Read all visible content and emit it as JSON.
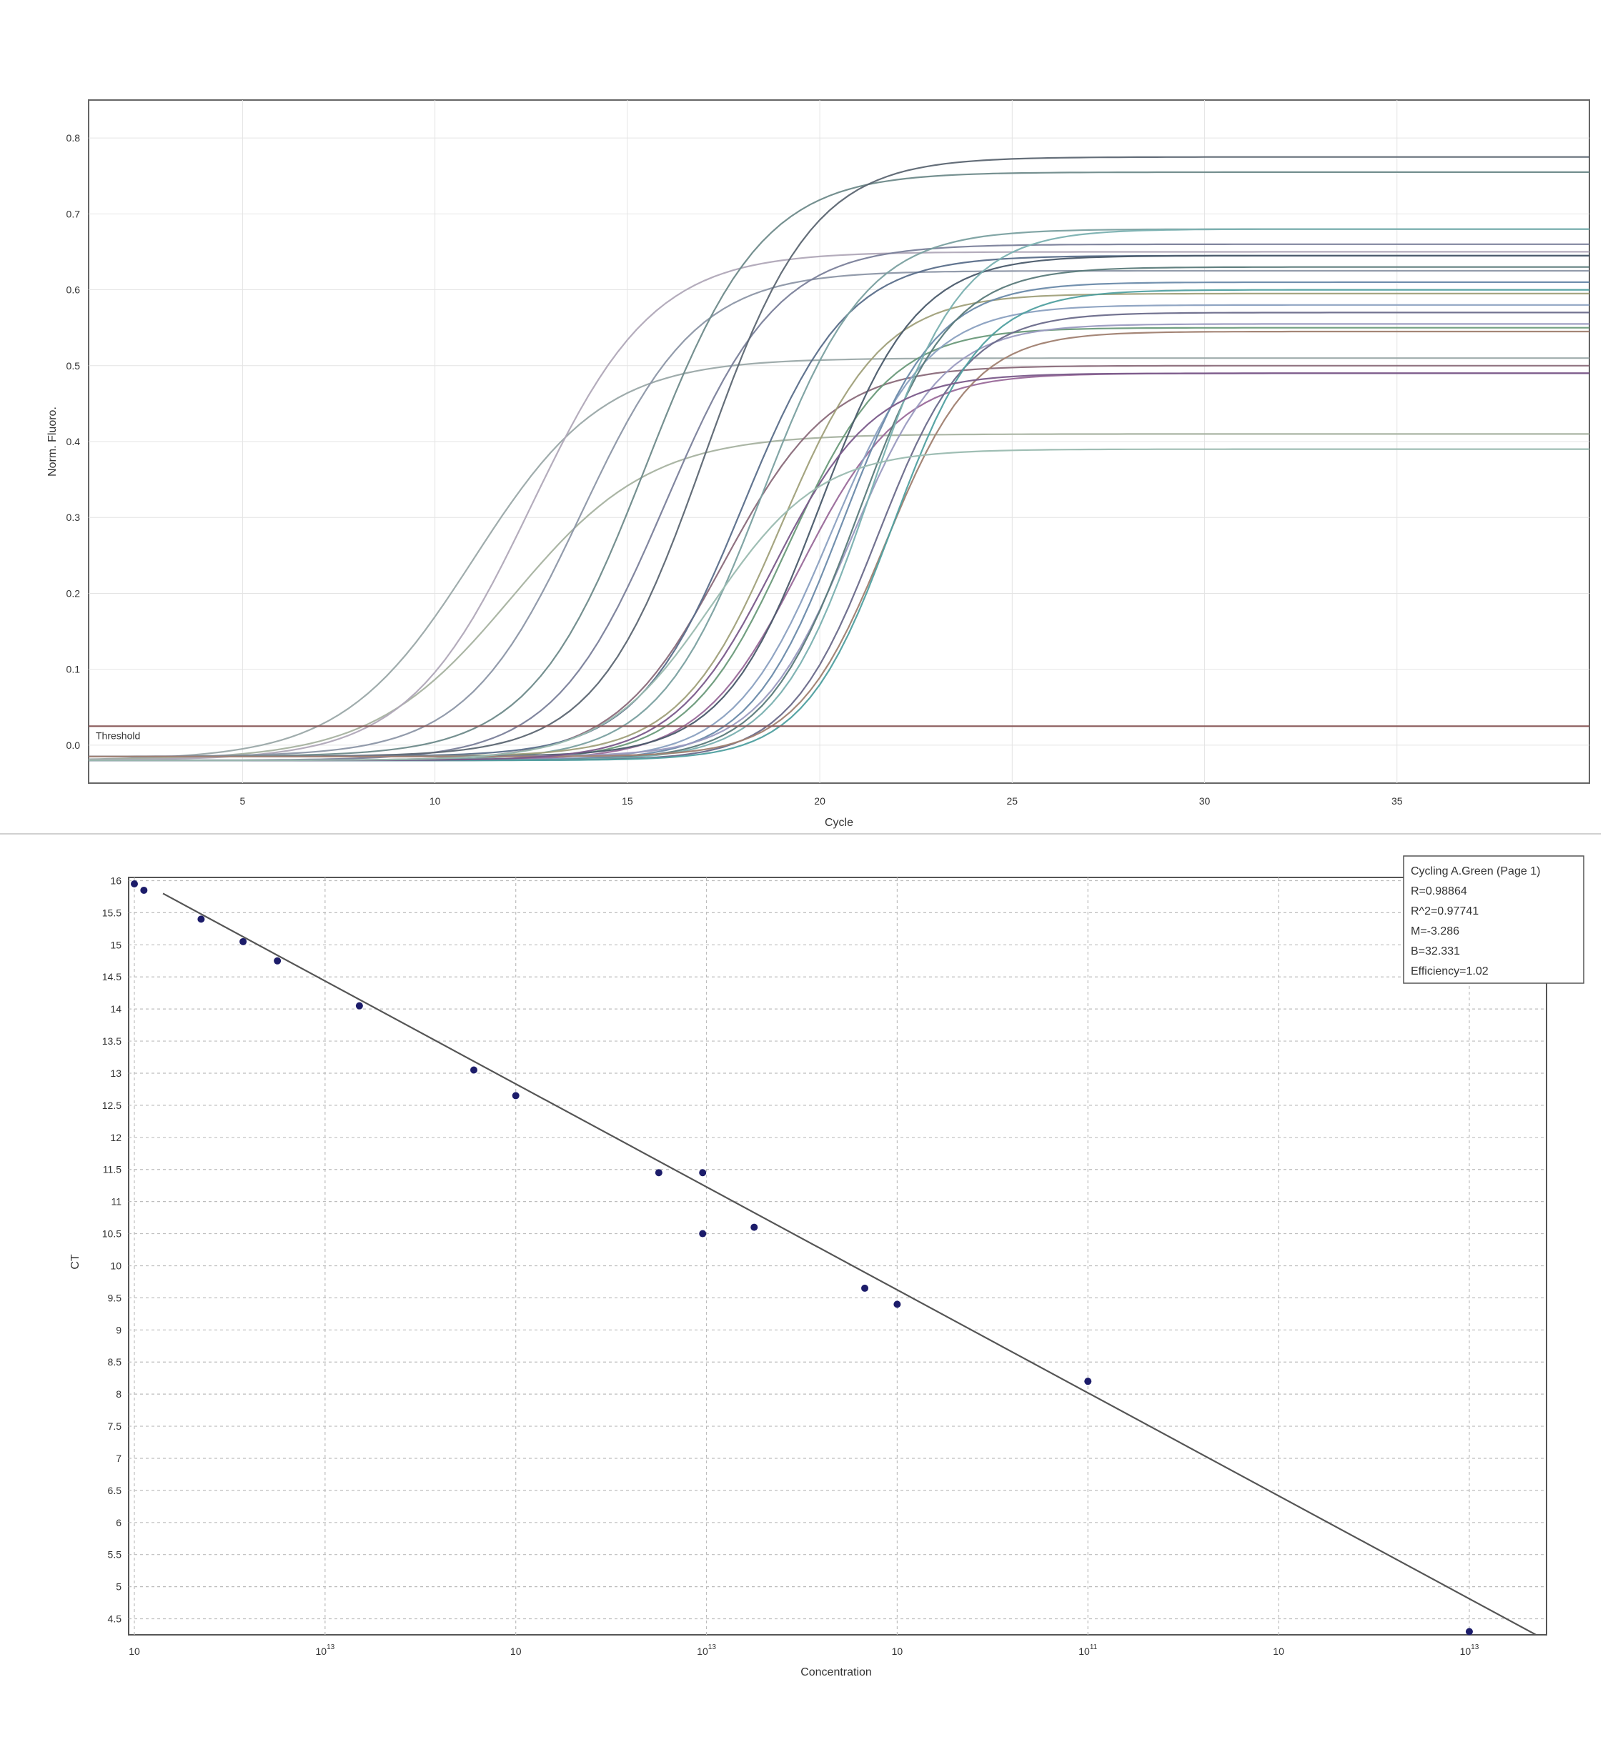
{
  "chart_data": [
    {
      "type": "line",
      "title": "",
      "xlabel": "Cycle",
      "ylabel": "Norm. Fluoro.",
      "xlim": [
        1,
        40
      ],
      "ylim": [
        -0.05,
        0.85
      ],
      "x_ticks": [
        5,
        10,
        15,
        20,
        25,
        30,
        35
      ],
      "x_tick_labels": [
        "5",
        "10",
        "15",
        "20",
        "25",
        "30",
        "35"
      ],
      "y_ticks": [
        0,
        0.1,
        0.2,
        0.3,
        0.4,
        0.5,
        0.6,
        0.7,
        0.8
      ],
      "y_tick_labels": [
        "0.0",
        "0.1",
        "0.2",
        "0.3",
        "0.4",
        "0.5",
        "0.6",
        "0.7",
        "0.8"
      ],
      "grid": true,
      "threshold": {
        "label": "Threshold",
        "value": 0.025
      },
      "curve_model": "sigmoid plateau / (1 + exp(-(cycle - midpoint) / slope)) + baseline",
      "series": [
        {
          "color": "#9aa8a8",
          "midpoint": 11.0,
          "slope": 1.7,
          "plateau": 0.53,
          "baseline": -0.02
        },
        {
          "color": "#a7b2a0",
          "midpoint": 12.0,
          "slope": 1.8,
          "plateau": 0.43,
          "baseline": -0.02
        },
        {
          "color": "#b0a8b8",
          "midpoint": 12.5,
          "slope": 1.6,
          "plateau": 0.67,
          "baseline": -0.02
        },
        {
          "color": "#8c96a6",
          "midpoint": 13.8,
          "slope": 1.5,
          "plateau": 0.64,
          "baseline": -0.015
        },
        {
          "color": "#6e8a8a",
          "midpoint": 15.5,
          "slope": 1.5,
          "plateau": 0.77,
          "baseline": -0.015
        },
        {
          "color": "#7a7f9a",
          "midpoint": 16.0,
          "slope": 1.45,
          "plateau": 0.68,
          "baseline": -0.02
        },
        {
          "color": "#5c6672",
          "midpoint": 17.0,
          "slope": 1.4,
          "plateau": 0.79,
          "baseline": -0.015
        },
        {
          "color": "#8a6a7a",
          "midpoint": 17.5,
          "slope": 1.4,
          "plateau": 0.52,
          "baseline": -0.02
        },
        {
          "color": "#5a6e8a",
          "midpoint": 18.0,
          "slope": 1.35,
          "plateau": 0.66,
          "baseline": -0.015
        },
        {
          "color": "#7aa0a0",
          "midpoint": 18.5,
          "slope": 1.35,
          "plateau": 0.7,
          "baseline": -0.02
        },
        {
          "color": "#a0a07a",
          "midpoint": 19.0,
          "slope": 1.3,
          "plateau": 0.61,
          "baseline": -0.015
        },
        {
          "color": "#6a9a7a",
          "midpoint": 19.2,
          "slope": 1.3,
          "plateau": 0.57,
          "baseline": -0.02
        },
        {
          "color": "#9a6a9a",
          "midpoint": 19.5,
          "slope": 1.3,
          "plateau": 0.51,
          "baseline": -0.02
        },
        {
          "color": "#4a5a6a",
          "midpoint": 20.0,
          "slope": 1.25,
          "plateau": 0.66,
          "baseline": -0.015
        },
        {
          "color": "#8aa0c0",
          "midpoint": 20.3,
          "slope": 1.25,
          "plateau": 0.6,
          "baseline": -0.02
        },
        {
          "color": "#6a8aaa",
          "midpoint": 20.6,
          "slope": 1.2,
          "plateau": 0.63,
          "baseline": -0.02
        },
        {
          "color": "#9a9ac0",
          "midpoint": 20.8,
          "slope": 1.2,
          "plateau": 0.57,
          "baseline": -0.015
        },
        {
          "color": "#5a7a7a",
          "midpoint": 21.0,
          "slope": 1.2,
          "plateau": 0.65,
          "baseline": -0.02
        },
        {
          "color": "#7ab0b0",
          "midpoint": 21.3,
          "slope": 1.2,
          "plateau": 0.7,
          "baseline": -0.02
        },
        {
          "color": "#6a6a8a",
          "midpoint": 21.5,
          "slope": 1.15,
          "plateau": 0.59,
          "baseline": -0.02
        },
        {
          "color": "#a08070",
          "midpoint": 21.7,
          "slope": 1.15,
          "plateau": 0.56,
          "baseline": -0.015
        },
        {
          "color": "#50a0a0",
          "midpoint": 21.9,
          "slope": 1.15,
          "plateau": 0.62,
          "baseline": -0.02
        },
        {
          "color": "#7a5a8a",
          "midpoint": 18.8,
          "slope": 1.3,
          "plateau": 0.51,
          "baseline": -0.02
        },
        {
          "color": "#9abab0",
          "midpoint": 17.2,
          "slope": 1.4,
          "plateau": 0.41,
          "baseline": -0.02
        }
      ]
    },
    {
      "type": "scatter",
      "title": "",
      "xlabel": "Concentration",
      "ylabel": "CT",
      "x_scale": "log",
      "x_tick_labels": [
        {
          "base": "10",
          "exp": ""
        },
        {
          "base": "10",
          "exp": "13"
        },
        {
          "base": "10",
          "exp": ""
        },
        {
          "base": "10",
          "exp": "13"
        },
        {
          "base": "10",
          "exp": ""
        },
        {
          "base": "10",
          "exp": "11"
        },
        {
          "base": "10",
          "exp": ""
        },
        {
          "base": "10",
          "exp": "13"
        }
      ],
      "y_ticks": [
        4.5,
        5,
        5.5,
        6,
        6.5,
        7,
        7.5,
        8,
        8.5,
        9,
        9.5,
        10,
        10.5,
        11,
        11.5,
        12,
        12.5,
        13,
        13.5,
        14,
        14.5,
        15,
        15.5,
        16
      ],
      "y_tick_labels": [
        "4.5",
        "5",
        "5.5",
        "6",
        "6.5",
        "7",
        "7.5",
        "8",
        "8.5",
        "9",
        "9.5",
        "10",
        "10.5",
        "11",
        "11.5",
        "12",
        "12.5",
        "13",
        "13.5",
        "14",
        "14.5",
        "15",
        "15.5",
        "16"
      ],
      "xlim": [
        0,
        7.3
      ],
      "ylim": [
        4.25,
        16.05
      ],
      "grid": true,
      "fit_line": {
        "x": [
          0.15,
          7.35
        ],
        "y": [
          15.8,
          4.25
        ]
      },
      "points": [
        {
          "x": 0.0,
          "y": 15.95
        },
        {
          "x": 0.05,
          "y": 15.85
        },
        {
          "x": 0.35,
          "y": 15.4
        },
        {
          "x": 0.57,
          "y": 15.05
        },
        {
          "x": 0.75,
          "y": 14.75
        },
        {
          "x": 1.18,
          "y": 14.05
        },
        {
          "x": 1.78,
          "y": 13.05
        },
        {
          "x": 2.0,
          "y": 12.65
        },
        {
          "x": 2.75,
          "y": 11.45
        },
        {
          "x": 2.98,
          "y": 11.45
        },
        {
          "x": 2.98,
          "y": 10.5
        },
        {
          "x": 3.25,
          "y": 10.6
        },
        {
          "x": 3.83,
          "y": 9.65
        },
        {
          "x": 4.0,
          "y": 9.4
        },
        {
          "x": 5.0,
          "y": 8.2
        },
        {
          "x": 7.0,
          "y": 4.3
        }
      ],
      "legend": {
        "position": "top-right",
        "lines": [
          "Cycling A.Green (Page 1)",
          "R=0.98864",
          "R^2=0.97741",
          "M=-3.286",
          "B=32.331",
          "Efficiency=1.02"
        ]
      },
      "colors": {
        "point": "#1c1c6a",
        "fit_line": "#555555"
      }
    }
  ]
}
